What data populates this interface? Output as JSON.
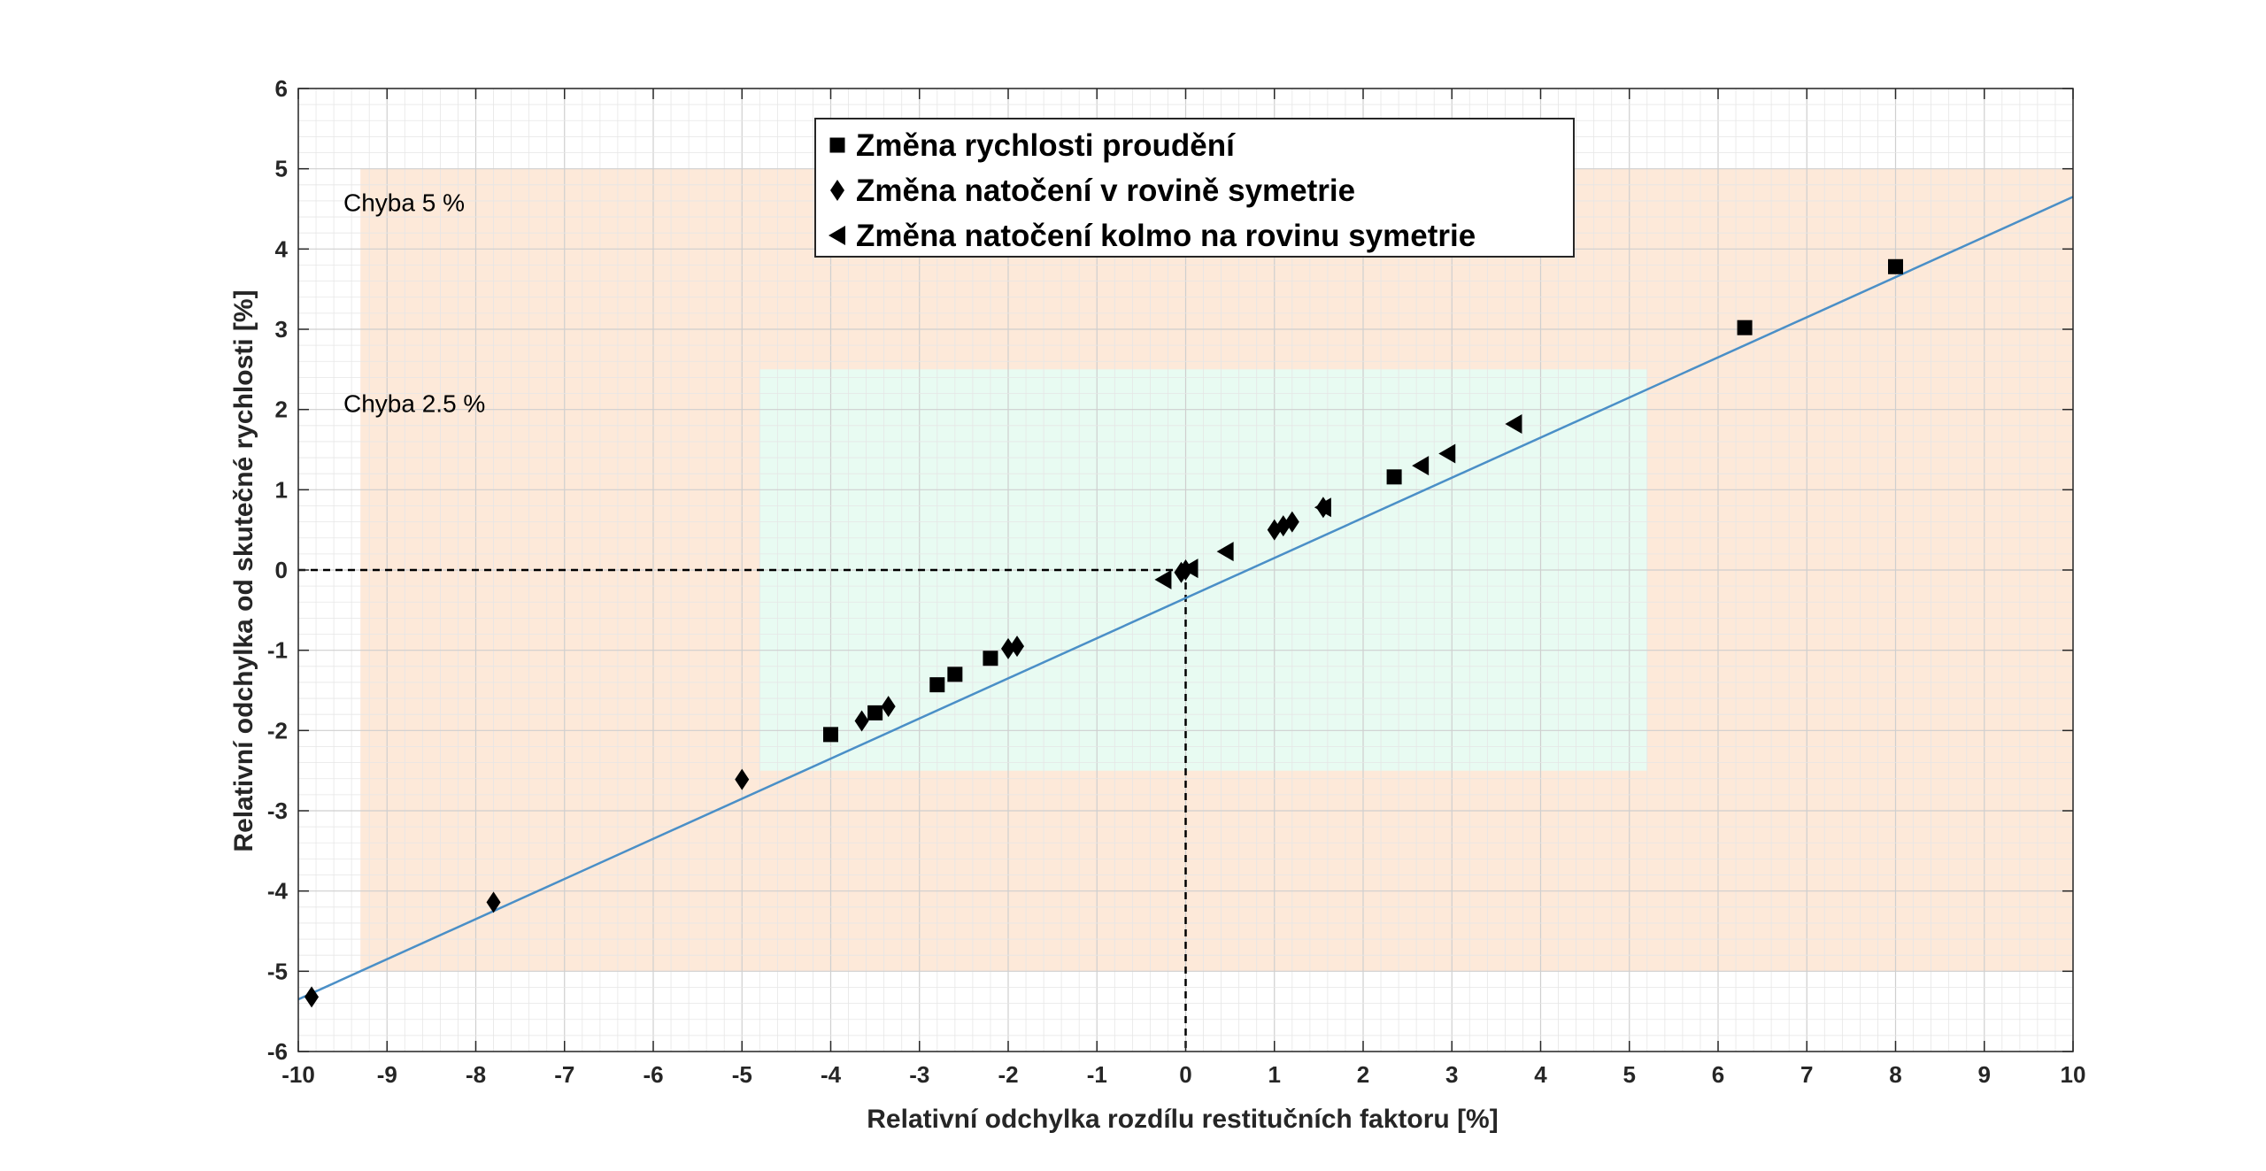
{
  "chart_data": {
    "type": "scatter",
    "title": "",
    "xlabel": "Relativní odchylka rozdílu restitučních faktoru [%]",
    "ylabel": "Relativní odchylka od skutečné rychlosti [%]",
    "xlim": [
      -10,
      10
    ],
    "ylim": [
      -6,
      6
    ],
    "xticks": [
      "-10",
      "-9",
      "-8",
      "-7",
      "-6",
      "-5",
      "-4",
      "-3",
      "-2",
      "-1",
      "0",
      "1",
      "2",
      "3",
      "4",
      "5",
      "6",
      "7",
      "8",
      "9",
      "10"
    ],
    "yticks": [
      "-6",
      "-5",
      "-4",
      "-3",
      "-2",
      "-1",
      "0",
      "1",
      "2",
      "3",
      "4",
      "5",
      "6"
    ],
    "grid": "minor",
    "legend_position": "top-center",
    "regions": [
      {
        "label": "Chyba 5 %",
        "y_range": [
          -5,
          5
        ],
        "x_range": [
          -9.3,
          10
        ],
        "color": "#fde9d9"
      },
      {
        "label": "Chyba 2.5 %",
        "y_range": [
          -2.5,
          2.5
        ],
        "x_range": [
          -4.8,
          5.2
        ],
        "color": "#e8fbf2"
      }
    ],
    "reference_lines": {
      "x": 0,
      "y": 0,
      "style": "dashed"
    },
    "fit_line": {
      "x": [
        -10,
        10
      ],
      "y": [
        -5.35,
        4.65
      ],
      "color": "#4a8fc7"
    },
    "series": [
      {
        "name": "Změna rychlosti proudění",
        "marker": "square",
        "x": [
          -4.0,
          -3.5,
          -2.8,
          -2.6,
          -2.2,
          2.35,
          6.3,
          8.0
        ],
        "y": [
          -2.05,
          -1.78,
          -1.43,
          -1.3,
          -1.1,
          1.16,
          3.02,
          3.78
        ]
      },
      {
        "name": "Změna natočení v rovině symetrie",
        "marker": "diamond",
        "x": [
          -9.85,
          -7.8,
          -5.0,
          -3.65,
          -3.35,
          -2.0,
          -1.9,
          -0.05,
          0.0,
          1.0,
          1.1,
          1.2,
          1.55
        ],
        "y": [
          -5.32,
          -4.14,
          -2.61,
          -1.88,
          -1.7,
          -0.98,
          -0.95,
          -0.03,
          0.0,
          0.5,
          0.55,
          0.6,
          0.78
        ]
      },
      {
        "name": "Změna natočení kolmo na rovinu symetrie",
        "marker": "triangle-left",
        "x": [
          -0.25,
          0.05,
          0.45,
          1.55,
          2.65,
          2.95,
          3.7
        ],
        "y": [
          -0.12,
          0.02,
          0.23,
          0.78,
          1.3,
          1.45,
          1.82
        ]
      }
    ]
  }
}
